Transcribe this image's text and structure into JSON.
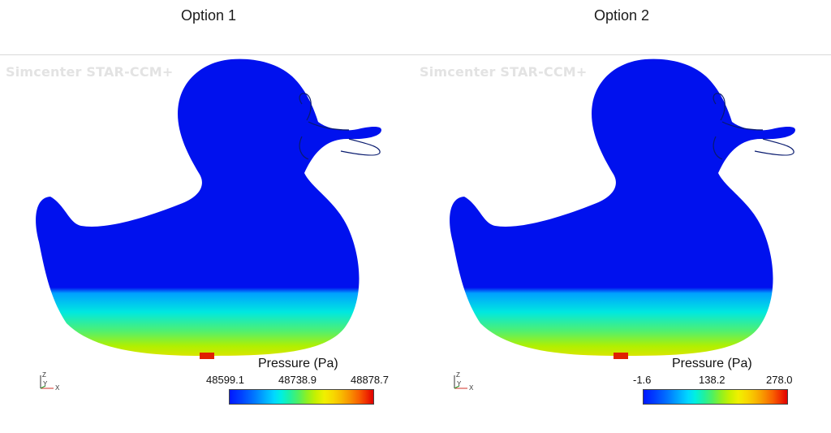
{
  "panels": [
    {
      "title": "Option 1",
      "watermark": "Simcenter STAR-CCM+",
      "legend": {
        "title": "Pressure (Pa)",
        "ticks": [
          "48599.1",
          "48738.9",
          "48878.7"
        ]
      },
      "axes": {
        "z": "Z",
        "y": "Y",
        "x": "X"
      }
    },
    {
      "title": "Option 2",
      "watermark": "Simcenter STAR-CCM+",
      "legend": {
        "title": "Pressure (Pa)",
        "ticks": [
          "-1.6",
          "138.2",
          "278.0"
        ]
      },
      "axes": {
        "z": "Z",
        "y": "Y",
        "x": "X"
      }
    }
  ],
  "colors": {
    "duck_body": "#0011ee",
    "pressure_low": "#0018ff",
    "pressure_high": "#e00000"
  }
}
